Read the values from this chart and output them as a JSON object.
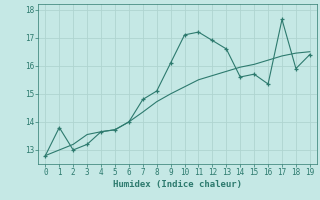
{
  "xlabel": "Humidex (Indice chaleur)",
  "x_values": [
    0,
    1,
    2,
    3,
    4,
    5,
    6,
    7,
    8,
    9,
    10,
    11,
    12,
    13,
    14,
    15,
    16,
    17,
    18,
    19
  ],
  "y_data": [
    12.8,
    13.8,
    13.0,
    13.2,
    13.65,
    13.72,
    14.0,
    14.8,
    15.1,
    16.1,
    17.1,
    17.2,
    16.9,
    16.6,
    15.6,
    15.7,
    15.35,
    17.65,
    15.9,
    16.4
  ],
  "y_trend": [
    12.8,
    13.0,
    13.2,
    13.55,
    13.65,
    13.72,
    14.0,
    14.35,
    14.72,
    15.0,
    15.25,
    15.5,
    15.65,
    15.8,
    15.95,
    16.05,
    16.2,
    16.35,
    16.45,
    16.5
  ],
  "line_color": "#2d7a6e",
  "bg_color": "#c5e8e5",
  "grid_color": "#afd4d0",
  "ylim": [
    12.5,
    18.2
  ],
  "xlim": [
    -0.5,
    19.5
  ],
  "yticks": [
    13,
    14,
    15,
    16,
    17,
    18
  ],
  "xticks": [
    0,
    1,
    2,
    3,
    4,
    5,
    6,
    7,
    8,
    9,
    10,
    11,
    12,
    13,
    14,
    15,
    16,
    17,
    18,
    19
  ]
}
